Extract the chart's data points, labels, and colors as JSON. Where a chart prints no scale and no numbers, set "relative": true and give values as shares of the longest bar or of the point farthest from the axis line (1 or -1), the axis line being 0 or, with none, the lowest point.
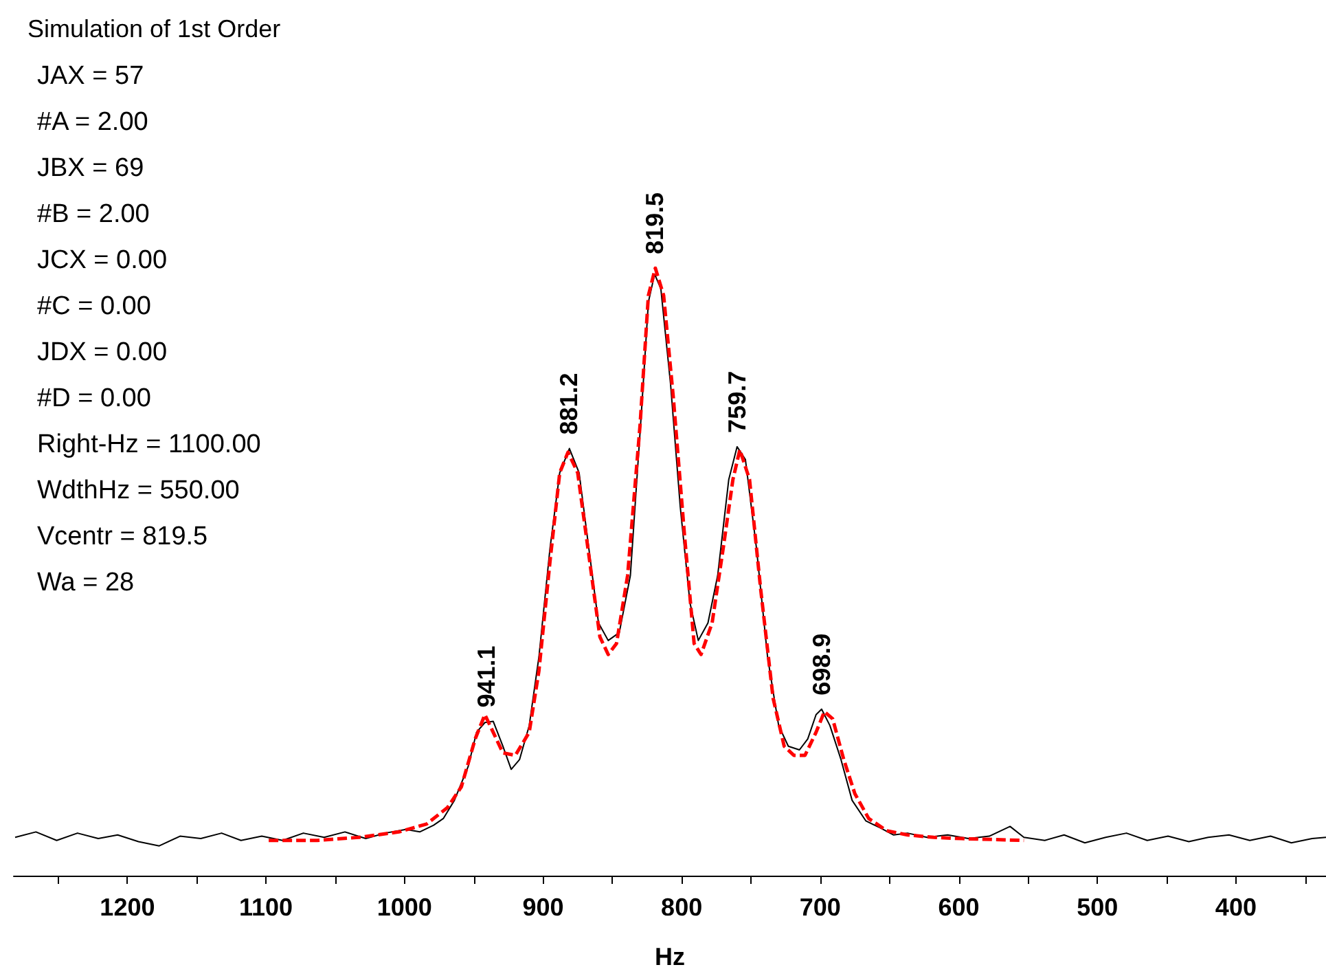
{
  "chart_data": {
    "type": "line",
    "title": "Simulation of 1st Order",
    "xlabel": "Hz",
    "relative": true,
    "annotations": [
      "JAX = 57",
      "#A = 2.00",
      "JBX = 69",
      "#B = 2.00",
      "JCX = 0.00",
      "#C = 0.00",
      "JDX = 0.00",
      "#D = 0.00",
      "Right-Hz = 1100.00",
      "WdthHz = 550.00",
      "Vcentr = 819.5",
      "Wa = 28",
      {
        "text": "941.1",
        "x": 941.1,
        "y": 0.254
      },
      {
        "text": "881.2",
        "x": 881.2,
        "y": 0.703
      },
      {
        "text": "819.5",
        "x": 819.5,
        "y": 1
      },
      {
        "text": "759.7",
        "x": 759.7,
        "y": 0.706
      },
      {
        "text": "698.9",
        "x": 698.9,
        "y": 0.274
      }
    ],
    "xlim": [
      1282,
      335
    ],
    "xticks": [
      {
        "value": 1250,
        "label": null
      },
      1200,
      {
        "value": 1150,
        "label": null
      },
      1100,
      {
        "value": 1050,
        "label": null
      },
      1000,
      {
        "value": 950,
        "label": null
      },
      900,
      {
        "value": 850,
        "label": null
      },
      800,
      {
        "value": 750,
        "label": null
      },
      700,
      {
        "value": 650,
        "label": null
      },
      600,
      {
        "value": 550,
        "label": null
      },
      500,
      {
        "value": 450,
        "label": null
      },
      400,
      {
        "value": 350,
        "label": null
      }
    ],
    "grid": false,
    "marker": "none",
    "series": [
      {
        "color": "#000000",
        "line_style": "solid",
        "x": [
          1281,
          1266,
          1251,
          1236,
          1221,
          1207,
          1192,
          1177,
          1162,
          1147,
          1132,
          1118,
          1103,
          1088,
          1073,
          1058,
          1043,
          1028,
          1014,
          999,
          989,
          979,
          972,
          964,
          954,
          948,
          942,
          936,
          929,
          923,
          917,
          910,
          903,
          895,
          888,
          881,
          874,
          867,
          860,
          853,
          845,
          837,
          829,
          824,
          819.5,
          815,
          808,
          801,
          794,
          788,
          781,
          774,
          766,
          760,
          754,
          746,
          738,
          730,
          723,
          715,
          709,
          703,
          699,
          693,
          685,
          677,
          667,
          657,
          647,
          637,
          623,
          608,
          593,
          578,
          563,
          553,
          538,
          524,
          509,
          494,
          479,
          464,
          449,
          434,
          420,
          405,
          390,
          375,
          360,
          345,
          335
        ],
        "values": [
          0.063,
          0.072,
          0.058,
          0.07,
          0.061,
          0.067,
          0.056,
          0.049,
          0.065,
          0.061,
          0.07,
          0.058,
          0.065,
          0.058,
          0.07,
          0.063,
          0.072,
          0.061,
          0.07,
          0.076,
          0.072,
          0.083,
          0.094,
          0.124,
          0.18,
          0.236,
          0.252,
          0.254,
          0.213,
          0.175,
          0.191,
          0.247,
          0.36,
          0.539,
          0.663,
          0.703,
          0.663,
          0.539,
          0.416,
          0.387,
          0.4,
          0.494,
          0.764,
          0.944,
          0.99,
          0.966,
          0.809,
          0.607,
          0.449,
          0.387,
          0.416,
          0.494,
          0.652,
          0.706,
          0.685,
          0.539,
          0.36,
          0.247,
          0.213,
          0.207,
          0.225,
          0.265,
          0.274,
          0.247,
          0.191,
          0.124,
          0.09,
          0.079,
          0.067,
          0.07,
          0.063,
          0.067,
          0.061,
          0.065,
          0.081,
          0.063,
          0.058,
          0.067,
          0.054,
          0.063,
          0.07,
          0.058,
          0.065,
          0.056,
          0.063,
          0.067,
          0.058,
          0.065,
          0.054,
          0.061,
          0.063
        ]
      },
      {
        "color": "#ff0000",
        "line_style": "dashed",
        "x": [
          1098,
          1063,
          1033,
          1004,
          984,
          969,
          959,
          949,
          942,
          936,
          929,
          920,
          910,
          903,
          895,
          888,
          882,
          875,
          867,
          859,
          853,
          847,
          839,
          830,
          824,
          819,
          813,
          806,
          798,
          791,
          786,
          778,
          770,
          763,
          758,
          751,
          743,
          734,
          726,
          719,
          711,
          703,
          697,
          691,
          683,
          675,
          665,
          652,
          637,
          618,
          598,
          553
        ],
        "values": [
          0.058,
          0.058,
          0.063,
          0.072,
          0.085,
          0.112,
          0.146,
          0.225,
          0.265,
          0.236,
          0.202,
          0.198,
          0.236,
          0.337,
          0.517,
          0.663,
          0.697,
          0.663,
          0.528,
          0.393,
          0.364,
          0.382,
          0.494,
          0.742,
          0.955,
          1,
          0.955,
          0.787,
          0.562,
          0.382,
          0.364,
          0.416,
          0.539,
          0.652,
          0.701,
          0.652,
          0.472,
          0.292,
          0.213,
          0.198,
          0.198,
          0.236,
          0.27,
          0.258,
          0.191,
          0.135,
          0.094,
          0.074,
          0.067,
          0.063,
          0.061,
          0.058
        ]
      }
    ]
  }
}
